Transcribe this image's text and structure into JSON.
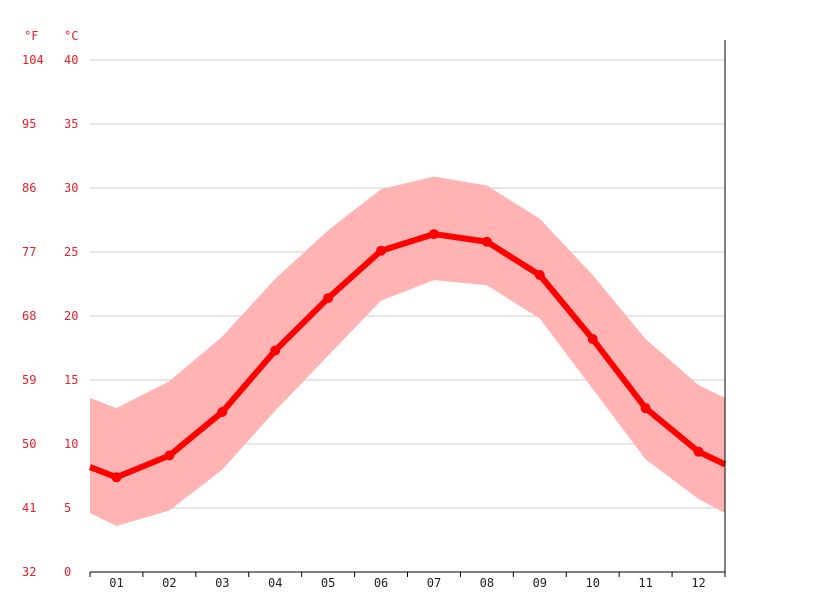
{
  "chart_data": {
    "type": "line",
    "title": "",
    "units": {
      "fahrenheit": "°F",
      "celsius": "°C"
    },
    "categories": [
      "01",
      "02",
      "03",
      "04",
      "05",
      "06",
      "07",
      "08",
      "09",
      "10",
      "11",
      "12"
    ],
    "y_ticks_celsius": [
      "0",
      "5",
      "10",
      "15",
      "20",
      "25",
      "30",
      "35",
      "40"
    ],
    "y_ticks_fahrenheit": [
      "32",
      "41",
      "50",
      "59",
      "68",
      "77",
      "86",
      "95",
      "104"
    ],
    "ylim": [
      0,
      40
    ],
    "grid": true,
    "series": [
      {
        "role": "mean",
        "values": [
          7.4,
          9.1,
          12.5,
          17.3,
          21.4,
          25.1,
          26.4,
          25.8,
          23.2,
          18.2,
          12.8,
          9.4
        ]
      },
      {
        "role": "max",
        "values": [
          12.8,
          14.9,
          18.4,
          22.9,
          26.7,
          29.9,
          30.9,
          30.2,
          27.6,
          23.2,
          18.2,
          14.6
        ]
      },
      {
        "role": "min",
        "values": [
          3.6,
          4.8,
          8.0,
          12.6,
          16.9,
          21.2,
          22.8,
          22.4,
          19.8,
          14.3,
          8.8,
          5.7
        ]
      }
    ],
    "edge_values": {
      "mean": [
        8.2,
        8.4
      ],
      "max": [
        13.6,
        13.6
      ],
      "min": [
        4.6,
        4.6
      ]
    }
  },
  "colors": {
    "line": "#ff0000",
    "band": "#ffb3b3",
    "grid": "#cccccc",
    "axis": "#000000",
    "tick_text": "#e8202a"
  }
}
